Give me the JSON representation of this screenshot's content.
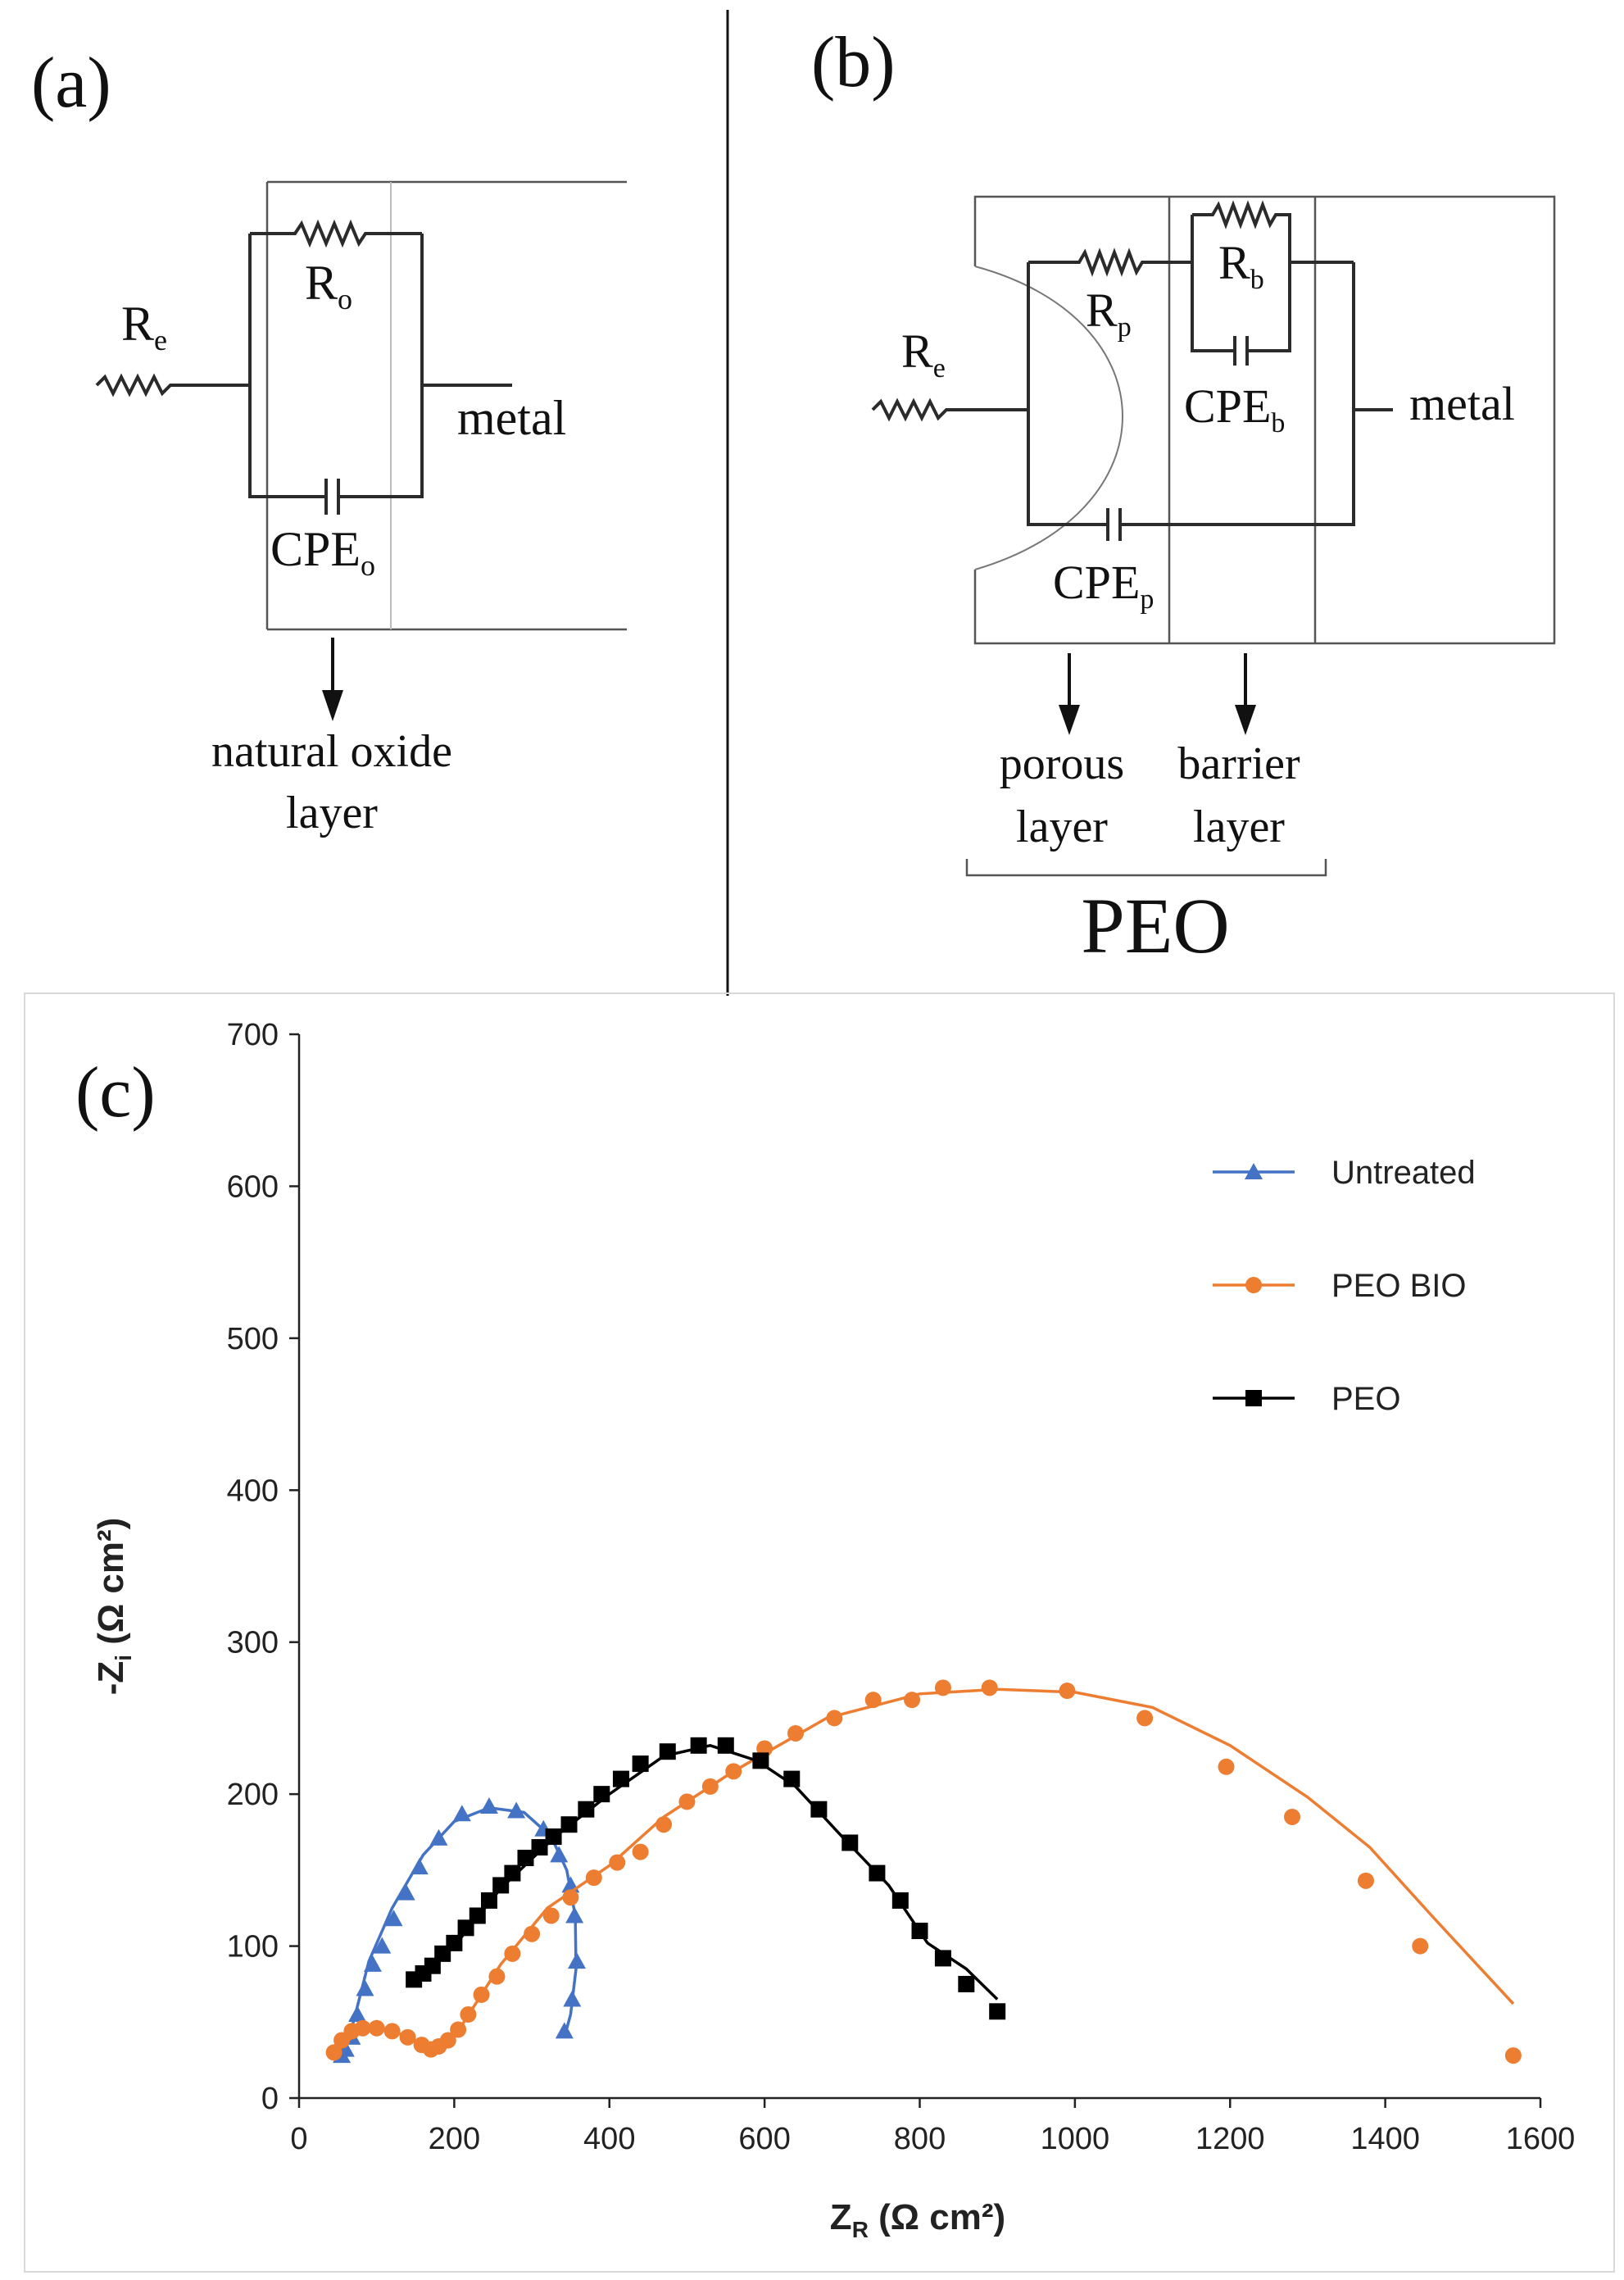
{
  "panel_a": {
    "label": "(a)",
    "components": {
      "Re": "R",
      "Re_sub": "e",
      "Ro": "R",
      "Ro_sub": "o",
      "CPEo": "CPE",
      "CPEo_sub": "o"
    },
    "metal_label": "metal",
    "layer_label_line1": "natural oxide",
    "layer_label_line2": "layer"
  },
  "panel_b": {
    "label": "(b)",
    "components": {
      "Re": "R",
      "Re_sub": "e",
      "Rp": "R",
      "Rp_sub": "p",
      "Rb": "R",
      "Rb_sub": "b",
      "CPEb": "CPE",
      "CPEb_sub": "b",
      "CPEp": "CPE",
      "CPEp_sub": "p"
    },
    "metal_label": "metal",
    "porous_line1": "porous",
    "porous_line2": "layer",
    "barrier_line1": "barrier",
    "barrier_line2": "layer",
    "group_label": "PEO"
  },
  "panel_c": {
    "label": "(c)"
  },
  "colors": {
    "untreated": "#4472c4",
    "peo_bio": "#ed7d31",
    "peo": "#000000"
  },
  "chart_data": {
    "type": "scatter",
    "title": "",
    "xlabel": "Z",
    "xlabel_sub": "R",
    "xlabel_unit": " (Ω cm²)",
    "ylabel": "-Z",
    "ylabel_sub": "i",
    "ylabel_unit": " (Ω cm²)",
    "xlim": [
      0,
      1600
    ],
    "ylim": [
      0,
      700
    ],
    "xticks": [
      0,
      200,
      400,
      600,
      800,
      1000,
      1200,
      1400,
      1600
    ],
    "yticks": [
      0,
      100,
      200,
      300,
      400,
      500,
      600,
      700
    ],
    "legend_position": "top-right",
    "series": [
      {
        "name": "Untreated",
        "marker": "triangle",
        "color": "#4472c4",
        "points": [
          [
            55,
            28
          ],
          [
            60,
            32
          ],
          [
            68,
            40
          ],
          [
            75,
            55
          ],
          [
            85,
            72
          ],
          [
            95,
            88
          ],
          [
            107,
            100
          ],
          [
            122,
            118
          ],
          [
            138,
            135
          ],
          [
            155,
            152
          ],
          [
            180,
            171
          ],
          [
            210,
            187
          ],
          [
            245,
            192
          ],
          [
            280,
            189
          ],
          [
            315,
            177
          ],
          [
            335,
            160
          ],
          [
            350,
            140
          ],
          [
            355,
            120
          ],
          [
            358,
            90
          ],
          [
            352,
            65
          ],
          [
            342,
            44
          ]
        ],
        "fit": [
          [
            55,
            28
          ],
          [
            70,
            50
          ],
          [
            90,
            90
          ],
          [
            120,
            125
          ],
          [
            160,
            160
          ],
          [
            200,
            182
          ],
          [
            245,
            191
          ],
          [
            290,
            188
          ],
          [
            325,
            172
          ],
          [
            345,
            150
          ],
          [
            356,
            120
          ],
          [
            357,
            85
          ],
          [
            350,
            55
          ],
          [
            342,
            40
          ]
        ]
      },
      {
        "name": "PEO BIO",
        "marker": "circle",
        "color": "#ed7d31",
        "points": [
          [
            45,
            30
          ],
          [
            55,
            38
          ],
          [
            68,
            44
          ],
          [
            82,
            46
          ],
          [
            100,
            46
          ],
          [
            120,
            44
          ],
          [
            140,
            40
          ],
          [
            158,
            35
          ],
          [
            170,
            32
          ],
          [
            180,
            34
          ],
          [
            192,
            38
          ],
          [
            205,
            45
          ],
          [
            218,
            55
          ],
          [
            235,
            68
          ],
          [
            255,
            80
          ],
          [
            275,
            95
          ],
          [
            300,
            108
          ],
          [
            325,
            120
          ],
          [
            350,
            132
          ],
          [
            380,
            145
          ],
          [
            410,
            155
          ],
          [
            440,
            162
          ],
          [
            470,
            180
          ],
          [
            500,
            195
          ],
          [
            530,
            205
          ],
          [
            560,
            215
          ],
          [
            600,
            230
          ],
          [
            640,
            240
          ],
          [
            690,
            250
          ],
          [
            740,
            262
          ],
          [
            790,
            262
          ],
          [
            830,
            270
          ],
          [
            890,
            270
          ],
          [
            990,
            268
          ],
          [
            1090,
            250
          ],
          [
            1195,
            218
          ],
          [
            1280,
            185
          ],
          [
            1375,
            143
          ],
          [
            1445,
            100
          ],
          [
            1565,
            28
          ]
        ],
        "fit": [
          [
            45,
            30
          ],
          [
            80,
            45
          ],
          [
            120,
            45
          ],
          [
            160,
            34
          ],
          [
            180,
            33
          ],
          [
            210,
            48
          ],
          [
            260,
            88
          ],
          [
            320,
            125
          ],
          [
            400,
            153
          ],
          [
            470,
            185
          ],
          [
            560,
            215
          ],
          [
            680,
            250
          ],
          [
            800,
            266
          ],
          [
            900,
            269
          ],
          [
            1000,
            267
          ],
          [
            1100,
            257
          ],
          [
            1200,
            232
          ],
          [
            1300,
            198
          ],
          [
            1380,
            165
          ],
          [
            1460,
            120
          ],
          [
            1565,
            62
          ]
        ]
      },
      {
        "name": "PEO",
        "marker": "square",
        "color": "#000000",
        "points": [
          [
            148,
            78
          ],
          [
            160,
            82
          ],
          [
            172,
            87
          ],
          [
            185,
            95
          ],
          [
            200,
            102
          ],
          [
            215,
            112
          ],
          [
            230,
            120
          ],
          [
            245,
            130
          ],
          [
            260,
            140
          ],
          [
            275,
            148
          ],
          [
            292,
            158
          ],
          [
            310,
            165
          ],
          [
            328,
            172
          ],
          [
            348,
            180
          ],
          [
            370,
            190
          ],
          [
            390,
            200
          ],
          [
            415,
            210
          ],
          [
            440,
            220
          ],
          [
            475,
            228
          ],
          [
            515,
            232
          ],
          [
            550,
            232
          ],
          [
            595,
            222
          ],
          [
            635,
            210
          ],
          [
            670,
            190
          ],
          [
            710,
            168
          ],
          [
            745,
            148
          ],
          [
            775,
            130
          ],
          [
            800,
            110
          ],
          [
            830,
            92
          ],
          [
            860,
            75
          ],
          [
            900,
            57
          ]
        ],
        "fit": [
          [
            148,
            75
          ],
          [
            200,
            100
          ],
          [
            260,
            138
          ],
          [
            330,
            172
          ],
          [
            400,
            200
          ],
          [
            470,
            225
          ],
          [
            530,
            232
          ],
          [
            590,
            222
          ],
          [
            640,
            205
          ],
          [
            700,
            172
          ],
          [
            760,
            140
          ],
          [
            810,
            102
          ],
          [
            860,
            85
          ],
          [
            900,
            65
          ]
        ]
      }
    ]
  }
}
